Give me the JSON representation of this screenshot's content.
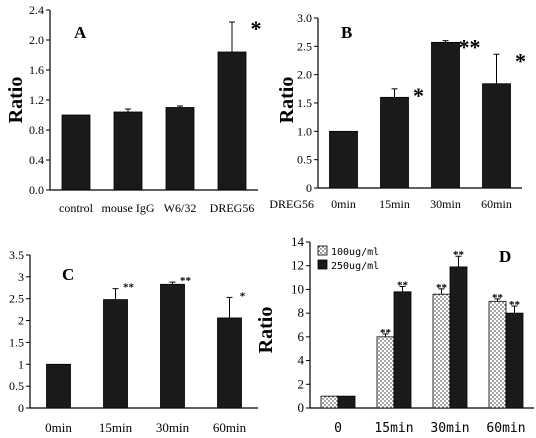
{
  "chart_data": [
    {
      "panel": "A",
      "type": "bar",
      "ylabel": "Ratio",
      "ylim": [
        0,
        2.4
      ],
      "yticks": [
        "0.0",
        "0.4",
        "0.8",
        "1.2",
        "1.6",
        "2.0",
        "2.4"
      ],
      "categories": [
        "control",
        "mouse IgG",
        "W6/32",
        "DREG56"
      ],
      "values": [
        1.0,
        1.04,
        1.1,
        1.84
      ],
      "errors": [
        0,
        0.04,
        0.02,
        0.4
      ],
      "significance": [
        "",
        "",
        "",
        "*"
      ]
    },
    {
      "panel": "B",
      "type": "bar",
      "ylabel": "Ratio",
      "ylim": [
        0,
        3.0
      ],
      "yticks": [
        "0",
        "0.5",
        "1.0",
        "1.5",
        "2.0",
        "2.5",
        "3.0"
      ],
      "xprefix": "DREG56",
      "categories": [
        "0min",
        "15min",
        "30min",
        "60min"
      ],
      "values": [
        1.0,
        1.6,
        2.57,
        1.84
      ],
      "errors": [
        0,
        0.15,
        0.03,
        0.52
      ],
      "significance": [
        "",
        "*",
        "**",
        "*"
      ]
    },
    {
      "panel": "C",
      "type": "bar",
      "ylim": [
        0,
        3.5
      ],
      "yticks": [
        "0",
        "0.5",
        "1",
        "1.5",
        "2",
        "2.5",
        "3",
        "3.5"
      ],
      "categories": [
        "0min",
        "15min",
        "30min",
        "60min"
      ],
      "values": [
        1.0,
        2.48,
        2.83,
        2.06
      ],
      "errors": [
        0,
        0.25,
        0.05,
        0.47
      ],
      "significance": [
        "",
        "**",
        "**",
        "*"
      ]
    },
    {
      "panel": "D",
      "type": "bar",
      "ylabel": "Ratio",
      "ylim": [
        0,
        14
      ],
      "yticks": [
        "0",
        "2",
        "4",
        "6",
        "8",
        "10",
        "12",
        "14"
      ],
      "categories": [
        "0",
        "15min",
        "30min",
        "60min"
      ],
      "legend_position": "top-left",
      "series": [
        {
          "name": "100ug/ml",
          "values": [
            1.0,
            6.0,
            9.6,
            9.0
          ],
          "errors": [
            0,
            0.25,
            0.45,
            0.2
          ],
          "significance": [
            "",
            "**",
            "**",
            "**"
          ]
        },
        {
          "name": "250ug/ml",
          "values": [
            1.0,
            9.8,
            11.9,
            8.0
          ],
          "errors": [
            0,
            0.45,
            0.9,
            0.6
          ],
          "significance": [
            "",
            "**",
            "**",
            "**"
          ]
        }
      ]
    }
  ]
}
